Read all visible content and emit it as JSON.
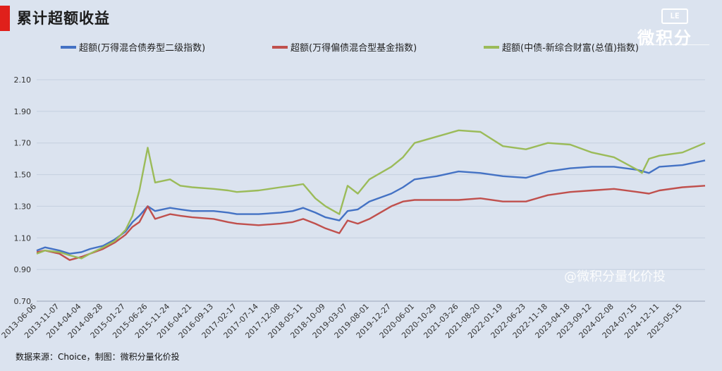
{
  "header": {
    "title": "累计超额收益",
    "logo_badge": "LE",
    "logo_text": "微积分",
    "watermark": "@微积分量化价投",
    "accent_color": "#e0201b"
  },
  "footer": {
    "source": "数据来源：Choice，制图：微积分量化价投"
  },
  "chart_data": {
    "type": "line",
    "title": "",
    "xlabel": "",
    "ylabel": "",
    "ylim": [
      0.7,
      2.1
    ],
    "yticks": [
      "2.10",
      "1.90",
      "1.70",
      "1.50",
      "1.30",
      "1.10",
      "0.90",
      "0.70"
    ],
    "y_tick_values": [
      2.1,
      1.9,
      1.7,
      1.5,
      1.3,
      1.1,
      0.9,
      0.7
    ],
    "grid": "horizontal",
    "legend_position": "top",
    "x_tick_labels": [
      "2013-06-06",
      "2013-11-07",
      "2014-04-04",
      "2014-08-28",
      "2015-01-27",
      "2015-06-26",
      "2015-11-24",
      "2016-04-21",
      "2016-09-13",
      "2017-02-17",
      "2017-07-14",
      "2017-12-08",
      "2018-05-11",
      "2018-10-09",
      "2019-03-07",
      "2019-08-01",
      "2019-12-27",
      "2020-06-01",
      "2020-10-29",
      "2021-03-26",
      "2021-08-20",
      "2022-01-19",
      "2022-06-23",
      "2022-11-18",
      "2023-04-18",
      "2023-09-12",
      "2024-02-08",
      "2024-07-15",
      "2024-12-11",
      "2025-05-15"
    ],
    "x_range": [
      "2013-06-06",
      "2025-10-15"
    ],
    "series": [
      {
        "name": "超额(万得混合债券型二级指数)",
        "color": "#4472c4",
        "points": [
          [
            "2013-06-06",
            1.02
          ],
          [
            "2013-08-01",
            1.04
          ],
          [
            "2013-11-07",
            1.02
          ],
          [
            "2014-01-15",
            1.0
          ],
          [
            "2014-04-04",
            1.01
          ],
          [
            "2014-06-01",
            1.03
          ],
          [
            "2014-08-28",
            1.05
          ],
          [
            "2014-11-15",
            1.09
          ],
          [
            "2015-01-27",
            1.14
          ],
          [
            "2015-03-15",
            1.2
          ],
          [
            "2015-05-01",
            1.24
          ],
          [
            "2015-06-26",
            1.3
          ],
          [
            "2015-08-15",
            1.27
          ],
          [
            "2015-11-24",
            1.29
          ],
          [
            "2016-02-01",
            1.28
          ],
          [
            "2016-04-21",
            1.27
          ],
          [
            "2016-09-13",
            1.27
          ],
          [
            "2016-12-20",
            1.26
          ],
          [
            "2017-02-17",
            1.25
          ],
          [
            "2017-07-14",
            1.25
          ],
          [
            "2017-12-08",
            1.26
          ],
          [
            "2018-03-01",
            1.27
          ],
          [
            "2018-05-11",
            1.29
          ],
          [
            "2018-08-01",
            1.26
          ],
          [
            "2018-10-09",
            1.23
          ],
          [
            "2019-01-10",
            1.21
          ],
          [
            "2019-03-07",
            1.27
          ],
          [
            "2019-05-15",
            1.28
          ],
          [
            "2019-08-01",
            1.33
          ],
          [
            "2019-12-27",
            1.38
          ],
          [
            "2020-03-15",
            1.42
          ],
          [
            "2020-06-01",
            1.47
          ],
          [
            "2020-10-29",
            1.49
          ],
          [
            "2021-03-26",
            1.52
          ],
          [
            "2021-08-20",
            1.51
          ],
          [
            "2022-01-19",
            1.49
          ],
          [
            "2022-06-23",
            1.48
          ],
          [
            "2022-11-18",
            1.52
          ],
          [
            "2023-04-18",
            1.54
          ],
          [
            "2023-09-12",
            1.55
          ],
          [
            "2024-02-08",
            1.55
          ],
          [
            "2024-07-15",
            1.53
          ],
          [
            "2024-10-01",
            1.51
          ],
          [
            "2024-12-11",
            1.55
          ],
          [
            "2025-05-15",
            1.56
          ],
          [
            "2025-10-15",
            1.59
          ]
        ]
      },
      {
        "name": "超额(万得偏债混合型基金指数)",
        "color": "#c0504d",
        "points": [
          [
            "2013-06-06",
            1.01
          ],
          [
            "2013-08-01",
            1.02
          ],
          [
            "2013-11-07",
            1.0
          ],
          [
            "2014-01-15",
            0.96
          ],
          [
            "2014-04-04",
            0.98
          ],
          [
            "2014-06-01",
            1.0
          ],
          [
            "2014-08-28",
            1.03
          ],
          [
            "2014-11-15",
            1.07
          ],
          [
            "2015-01-27",
            1.12
          ],
          [
            "2015-03-15",
            1.17
          ],
          [
            "2015-05-01",
            1.2
          ],
          [
            "2015-06-26",
            1.3
          ],
          [
            "2015-08-15",
            1.22
          ],
          [
            "2015-11-24",
            1.25
          ],
          [
            "2016-02-01",
            1.24
          ],
          [
            "2016-04-21",
            1.23
          ],
          [
            "2016-09-13",
            1.22
          ],
          [
            "2016-12-20",
            1.2
          ],
          [
            "2017-02-17",
            1.19
          ],
          [
            "2017-07-14",
            1.18
          ],
          [
            "2017-12-08",
            1.19
          ],
          [
            "2018-03-01",
            1.2
          ],
          [
            "2018-05-11",
            1.22
          ],
          [
            "2018-08-01",
            1.19
          ],
          [
            "2018-10-09",
            1.16
          ],
          [
            "2019-01-10",
            1.13
          ],
          [
            "2019-03-07",
            1.21
          ],
          [
            "2019-05-15",
            1.19
          ],
          [
            "2019-08-01",
            1.22
          ],
          [
            "2019-12-27",
            1.3
          ],
          [
            "2020-03-15",
            1.33
          ],
          [
            "2020-06-01",
            1.34
          ],
          [
            "2020-10-29",
            1.34
          ],
          [
            "2021-03-26",
            1.34
          ],
          [
            "2021-08-20",
            1.35
          ],
          [
            "2022-01-19",
            1.33
          ],
          [
            "2022-06-23",
            1.33
          ],
          [
            "2022-11-18",
            1.37
          ],
          [
            "2023-04-18",
            1.39
          ],
          [
            "2023-09-12",
            1.4
          ],
          [
            "2024-02-08",
            1.41
          ],
          [
            "2024-07-15",
            1.39
          ],
          [
            "2024-10-01",
            1.38
          ],
          [
            "2024-12-11",
            1.4
          ],
          [
            "2025-05-15",
            1.42
          ],
          [
            "2025-10-15",
            1.43
          ]
        ]
      },
      {
        "name": "超额(中债-新综合财富(总值)指数)",
        "color": "#9bbb59",
        "points": [
          [
            "2013-06-06",
            1.0
          ],
          [
            "2013-08-01",
            1.02
          ],
          [
            "2013-11-07",
            1.01
          ],
          [
            "2014-01-15",
            0.99
          ],
          [
            "2014-04-04",
            0.97
          ],
          [
            "2014-06-01",
            1.0
          ],
          [
            "2014-08-28",
            1.04
          ],
          [
            "2014-11-15",
            1.08
          ],
          [
            "2015-01-27",
            1.15
          ],
          [
            "2015-03-15",
            1.24
          ],
          [
            "2015-05-01",
            1.4
          ],
          [
            "2015-06-26",
            1.67
          ],
          [
            "2015-08-15",
            1.45
          ],
          [
            "2015-11-24",
            1.47
          ],
          [
            "2016-02-01",
            1.43
          ],
          [
            "2016-04-21",
            1.42
          ],
          [
            "2016-09-13",
            1.41
          ],
          [
            "2016-12-20",
            1.4
          ],
          [
            "2017-02-17",
            1.39
          ],
          [
            "2017-07-14",
            1.4
          ],
          [
            "2017-12-08",
            1.42
          ],
          [
            "2018-03-01",
            1.43
          ],
          [
            "2018-05-11",
            1.44
          ],
          [
            "2018-08-01",
            1.35
          ],
          [
            "2018-10-09",
            1.3
          ],
          [
            "2019-01-10",
            1.25
          ],
          [
            "2019-03-07",
            1.43
          ],
          [
            "2019-05-15",
            1.38
          ],
          [
            "2019-08-01",
            1.47
          ],
          [
            "2019-12-27",
            1.55
          ],
          [
            "2020-03-15",
            1.61
          ],
          [
            "2020-06-01",
            1.7
          ],
          [
            "2020-10-29",
            1.74
          ],
          [
            "2021-03-26",
            1.78
          ],
          [
            "2021-08-20",
            1.77
          ],
          [
            "2022-01-19",
            1.68
          ],
          [
            "2022-06-23",
            1.66
          ],
          [
            "2022-11-18",
            1.7
          ],
          [
            "2023-04-18",
            1.69
          ],
          [
            "2023-09-12",
            1.64
          ],
          [
            "2024-02-08",
            1.61
          ],
          [
            "2024-07-15",
            1.53
          ],
          [
            "2024-08-15",
            1.51
          ],
          [
            "2024-10-01",
            1.6
          ],
          [
            "2024-12-11",
            1.62
          ],
          [
            "2025-05-15",
            1.64
          ],
          [
            "2025-10-15",
            1.7
          ]
        ]
      }
    ]
  }
}
